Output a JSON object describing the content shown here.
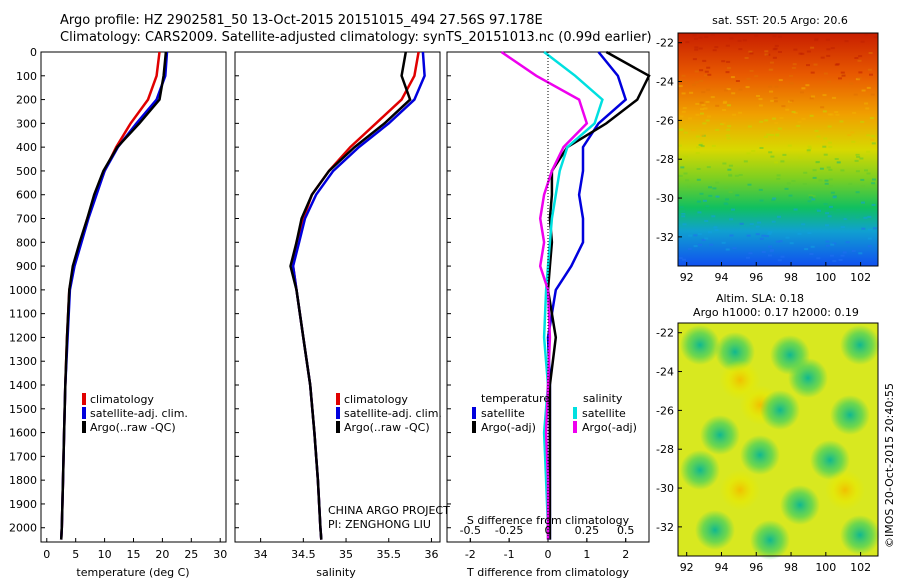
{
  "header": {
    "line1": "Argo profile: HZ 2902581_50 13-Oct-2015 20151015_494 27.56S 97.178E",
    "line2": "Climatology: CARS2009. Satellite-adjusted climatology: synTS_20151013.nc (0.99d earlier)"
  },
  "colors": {
    "climatology": "#e00000",
    "satellite": "#0000dd",
    "argo": "#000000",
    "salinity_satellite": "#00e0e0",
    "salinity_argo": "#ee00ee"
  },
  "depth_axis": {
    "ticks": [
      0,
      100,
      200,
      300,
      400,
      500,
      600,
      700,
      800,
      900,
      1000,
      1100,
      1200,
      1300,
      1400,
      1500,
      1600,
      1700,
      1800,
      1900,
      2000
    ],
    "ylim": [
      0,
      2060
    ]
  },
  "temperature_panel": {
    "xlabel": "temperature (deg C)",
    "xticks": [
      "0",
      "5",
      "10",
      "15",
      "20",
      "25",
      "30"
    ],
    "legend": [
      "climatology",
      "satellite-adj. clim.",
      "Argo(..raw -QC)"
    ]
  },
  "salinity_panel": {
    "xlabel": "salinity",
    "xticks": [
      "34",
      "34.5",
      "35",
      "35.5",
      "36"
    ],
    "legend": [
      "climatology",
      "satellite-adj. clim.",
      "Argo(..raw -QC)"
    ],
    "credit1": "CHINA ARGO PROJECT",
    "credit2": "PI: ZENGHONG LIU"
  },
  "difference_panel": {
    "top_xlabel": "S difference from climatology",
    "top_xticks": [
      "-0.5",
      "-0.25",
      "0",
      "0.25",
      "0.5"
    ],
    "xlabel": "T difference from climatology",
    "xticks": [
      "-2",
      "-1",
      "0",
      "1",
      "2"
    ],
    "legend_temp_title": "temperature",
    "legend_sal_title": "salinity",
    "legend_temp": [
      "satellite",
      "Argo(-adj)"
    ],
    "legend_sal": [
      "satellite",
      "Argo(-adj)"
    ]
  },
  "sst_map": {
    "title": "sat. SST: 20.5  Argo: 20.6",
    "xticks": [
      "92",
      "94",
      "96",
      "98",
      "100",
      "102"
    ],
    "yticks": [
      "-22",
      "-24",
      "-26",
      "-28",
      "-30",
      "-32"
    ]
  },
  "sla_map": {
    "title1": "Altim. SLA: 0.18",
    "title2": "Argo h1000: 0.17  h2000: 0.19",
    "xticks": [
      "92",
      "94",
      "96",
      "98",
      "100",
      "102"
    ],
    "yticks": [
      "-22",
      "-24",
      "-26",
      "-28",
      "-30",
      "-32"
    ]
  },
  "footer": {
    "stamp": "©IMOS 20-Oct-2015 20:40:55"
  },
  "chart_data": [
    {
      "type": "line",
      "panel": "temperature",
      "xlabel": "temperature (deg C)",
      "ylabel": "",
      "xlim": [
        -1,
        31
      ],
      "ylim": [
        2060,
        0
      ],
      "series": [
        {
          "name": "climatology",
          "x": [
            19.5,
            19.0,
            17.5,
            14.5,
            12.0,
            10.0,
            8.5,
            7.0,
            5.8,
            4.7,
            3.9,
            3.5,
            3.2,
            3.0,
            2.8,
            2.6,
            2.5
          ],
          "depth": [
            0,
            100,
            200,
            300,
            400,
            500,
            600,
            700,
            800,
            900,
            1000,
            1200,
            1400,
            1600,
            1800,
            2000,
            2050
          ]
        },
        {
          "name": "satellite-adj. clim.",
          "x": [
            20.8,
            20.5,
            19.0,
            15.5,
            12.3,
            10.0,
            8.6,
            7.2,
            6.0,
            4.8,
            4.0,
            3.6,
            3.2,
            3.0,
            2.8,
            2.6,
            2.5
          ],
          "depth": [
            0,
            100,
            200,
            300,
            400,
            500,
            600,
            700,
            800,
            900,
            1000,
            1200,
            1400,
            1600,
            1800,
            2000,
            2050
          ]
        },
        {
          "name": "Argo(..raw -QC)",
          "x": [
            20.6,
            20.2,
            19.5,
            16.0,
            12.2,
            9.8,
            8.2,
            7.0,
            5.7,
            4.5,
            3.9,
            3.5,
            3.2,
            3.0,
            2.8,
            2.6,
            2.5
          ],
          "depth": [
            0,
            100,
            200,
            300,
            400,
            500,
            600,
            700,
            800,
            900,
            1000,
            1200,
            1400,
            1600,
            1800,
            2000,
            2050
          ]
        }
      ]
    },
    {
      "type": "line",
      "panel": "salinity",
      "xlabel": "salinity",
      "ylabel": "",
      "xlim": [
        33.7,
        36.1
      ],
      "ylim": [
        2060,
        0
      ],
      "series": [
        {
          "name": "climatology",
          "x": [
            35.85,
            35.8,
            35.65,
            35.35,
            35.05,
            34.8,
            34.6,
            34.5,
            34.42,
            34.38,
            34.42,
            34.5,
            34.58,
            34.63,
            34.67,
            34.7,
            34.71
          ],
          "depth": [
            0,
            100,
            200,
            300,
            400,
            500,
            600,
            700,
            800,
            900,
            1000,
            1200,
            1400,
            1600,
            1800,
            2000,
            2050
          ]
        },
        {
          "name": "satellite-adj. clim.",
          "x": [
            35.9,
            35.92,
            35.8,
            35.5,
            35.15,
            34.85,
            34.65,
            34.52,
            34.45,
            34.38,
            34.42,
            34.5,
            34.58,
            34.63,
            34.67,
            34.7,
            34.71
          ],
          "depth": [
            0,
            100,
            200,
            300,
            400,
            500,
            600,
            700,
            800,
            900,
            1000,
            1200,
            1400,
            1600,
            1800,
            2000,
            2050
          ]
        },
        {
          "name": "Argo(..raw -QC)",
          "x": [
            35.7,
            35.65,
            35.75,
            35.45,
            35.1,
            34.8,
            34.6,
            34.48,
            34.42,
            34.35,
            34.42,
            34.5,
            34.58,
            34.63,
            34.67,
            34.7,
            34.71
          ],
          "depth": [
            0,
            100,
            200,
            300,
            400,
            500,
            600,
            700,
            800,
            900,
            1000,
            1200,
            1400,
            1600,
            1800,
            2000,
            2050
          ]
        }
      ]
    },
    {
      "type": "line",
      "panel": "difference",
      "xlabel": "T difference from climatology",
      "xlim": [
        -2.6,
        2.6
      ],
      "ylim": [
        2060,
        0
      ],
      "series": [
        {
          "name": "temperature satellite",
          "x": [
            1.3,
            1.8,
            2.0,
            1.3,
            0.9,
            0.9,
            0.8,
            0.9,
            0.9,
            0.6,
            0.2,
            0.0,
            0.05,
            0.05,
            0.05,
            0.05,
            0.05
          ],
          "depth": [
            0,
            100,
            200,
            300,
            400,
            500,
            600,
            700,
            800,
            900,
            1000,
            1200,
            1400,
            1600,
            1800,
            2000,
            2050
          ]
        },
        {
          "name": "temperature Argo(-adj)",
          "x": [
            1.5,
            2.6,
            2.3,
            1.5,
            0.5,
            0.1,
            0.1,
            0.05,
            0.1,
            0.05,
            0.0,
            0.2,
            0.05,
            0.05,
            0.05,
            0.05,
            0.05
          ],
          "depth": [
            0,
            100,
            200,
            300,
            400,
            500,
            600,
            700,
            800,
            900,
            1000,
            1200,
            1400,
            1600,
            1800,
            2000,
            2050
          ]
        },
        {
          "name": "salinity satellite",
          "x": [
            -0.1,
            0.7,
            1.4,
            1.2,
            0.5,
            0.3,
            0.2,
            0.1,
            0.05,
            0.0,
            -0.05,
            -0.1,
            0.0,
            -0.1,
            -0.05,
            0.0,
            0.0
          ],
          "depth": [
            0,
            100,
            200,
            300,
            400,
            500,
            600,
            700,
            800,
            900,
            1000,
            1200,
            1400,
            1600,
            1800,
            2000,
            2050
          ]
        },
        {
          "name": "salinity Argo(-adj)",
          "x": [
            -1.2,
            -0.3,
            0.8,
            1.0,
            0.4,
            0.1,
            -0.1,
            -0.2,
            -0.1,
            -0.2,
            0.0,
            0.05,
            0.0,
            -0.05,
            0.0,
            0.0,
            0.0
          ],
          "depth": [
            0,
            100,
            200,
            300,
            400,
            500,
            600,
            700,
            800,
            900,
            1000,
            1200,
            1400,
            1600,
            1800,
            2000,
            2050
          ]
        }
      ]
    },
    {
      "type": "heatmap",
      "panel": "sst_map",
      "title": "sat. SST: 20.5  Argo: 20.6",
      "xlim": [
        91.5,
        103
      ],
      "ylim": [
        -33.5,
        -21.5
      ]
    },
    {
      "type": "heatmap",
      "panel": "sla_map",
      "title": "Altim. SLA: 0.18",
      "xlim": [
        91.5,
        103
      ],
      "ylim": [
        -33.5,
        -21.5
      ]
    }
  ]
}
